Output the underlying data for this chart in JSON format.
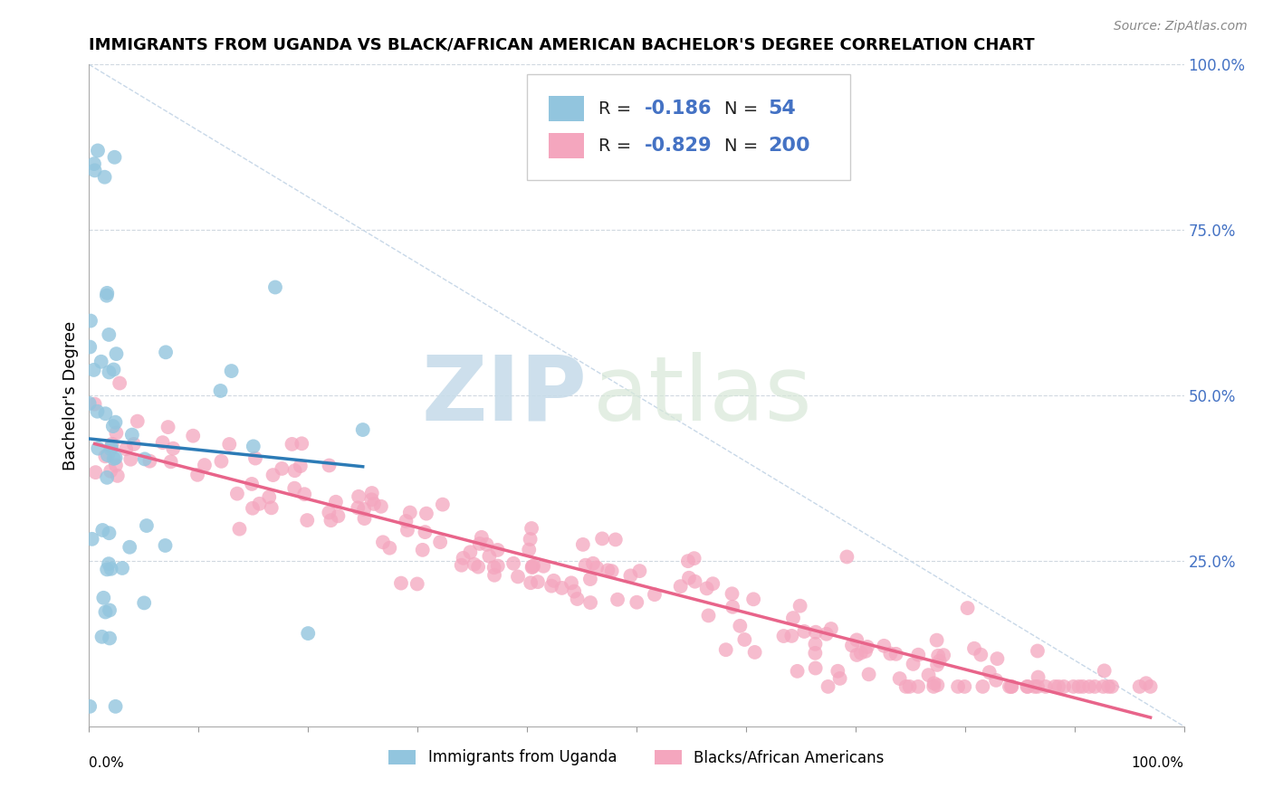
{
  "title": "IMMIGRANTS FROM UGANDA VS BLACK/AFRICAN AMERICAN BACHELOR'S DEGREE CORRELATION CHART",
  "source": "Source: ZipAtlas.com",
  "ylabel": "Bachelor's Degree",
  "watermark_zip": "ZIP",
  "watermark_atlas": "atlas",
  "legend_r1_val": "-0.186",
  "legend_n1_val": "54",
  "legend_r2_val": "-0.829",
  "legend_n2_val": "200",
  "blue_color": "#92c5de",
  "pink_color": "#f4a6be",
  "blue_line_color": "#2c7bb6",
  "pink_line_color": "#e8648a",
  "diag_color": "#c8d8e8",
  "label1": "Immigrants from Uganda",
  "label2": "Blacks/African Americans",
  "right_tick_color": "#4472C4",
  "title_fontsize": 13,
  "source_fontsize": 10,
  "legend_fontsize": 15
}
